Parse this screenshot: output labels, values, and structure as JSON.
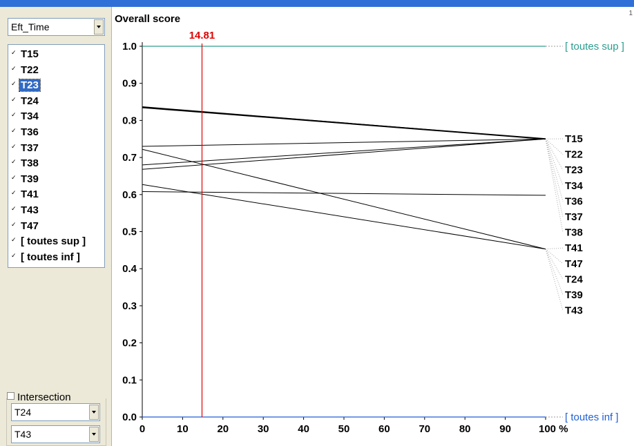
{
  "app": {
    "title_color": "#2f6fd8"
  },
  "sidebar": {
    "criterion_select": {
      "value": "Eft_Time"
    },
    "items": [
      {
        "label": "T15",
        "checked": true,
        "selected": false
      },
      {
        "label": "T22",
        "checked": true,
        "selected": false
      },
      {
        "label": "T23",
        "checked": true,
        "selected": true
      },
      {
        "label": "T24",
        "checked": true,
        "selected": false
      },
      {
        "label": "T34",
        "checked": true,
        "selected": false
      },
      {
        "label": "T36",
        "checked": true,
        "selected": false
      },
      {
        "label": "T37",
        "checked": true,
        "selected": false
      },
      {
        "label": "T38",
        "checked": true,
        "selected": false
      },
      {
        "label": "T39",
        "checked": true,
        "selected": false
      },
      {
        "label": "T41",
        "checked": true,
        "selected": false
      },
      {
        "label": "T43",
        "checked": true,
        "selected": false
      },
      {
        "label": "T47",
        "checked": true,
        "selected": false
      },
      {
        "label": "[ toutes sup ]",
        "checked": true,
        "selected": false
      },
      {
        "label": "[ toutes inf ]",
        "checked": true,
        "selected": false
      }
    ],
    "intersection": {
      "label": "Intersection",
      "checked": false,
      "select_a": "T24",
      "select_b": "T43"
    }
  },
  "plot": {
    "title": "Overall score",
    "corner_mark": "1"
  },
  "chart_data": {
    "type": "line",
    "title": "Overall score",
    "xlabel": "",
    "ylabel": "",
    "x_ticks": [
      "0",
      "10",
      "20",
      "30",
      "40",
      "50",
      "60",
      "70",
      "80",
      "90",
      "100 %"
    ],
    "y_ticks": [
      "0.0",
      "0.1",
      "0.2",
      "0.3",
      "0.4",
      "0.5",
      "0.6",
      "0.7",
      "0.8",
      "0.9",
      "1.0"
    ],
    "xlim": [
      0,
      100
    ],
    "ylim": [
      0,
      1
    ],
    "cutoff": {
      "x": 14.81,
      "label": "14.81",
      "color": "#e00000"
    },
    "series": [
      {
        "name": "T23",
        "y0": 0.835,
        "y1": 0.75,
        "bold": true
      },
      {
        "name": "T15",
        "y0": 0.837,
        "y1": 0.75
      },
      {
        "name": "",
        "y0": 0.73,
        "y1": 0.75
      },
      {
        "name": "",
        "y0": 0.722,
        "y1": 0.453
      },
      {
        "name": "",
        "y0": 0.68,
        "y1": 0.75
      },
      {
        "name": "",
        "y0": 0.668,
        "y1": 0.75
      },
      {
        "name": "",
        "y0": 0.627,
        "y1": 0.453
      },
      {
        "name": "",
        "y0": 0.608,
        "y1": 0.598
      }
    ],
    "reference_lines": [
      {
        "name": "[ toutes sup ]",
        "y": 1.0,
        "color": "#2a9d8f"
      },
      {
        "name": "[ toutes inf ]",
        "y": 0.0,
        "color": "#1f5fd6"
      }
    ],
    "right_labels": [
      "T15",
      "T22",
      "T23",
      "T34",
      "T36",
      "T37",
      "T38",
      "T41",
      "T47",
      "T24",
      "T39",
      "T43"
    ],
    "bold_label": "T23"
  }
}
